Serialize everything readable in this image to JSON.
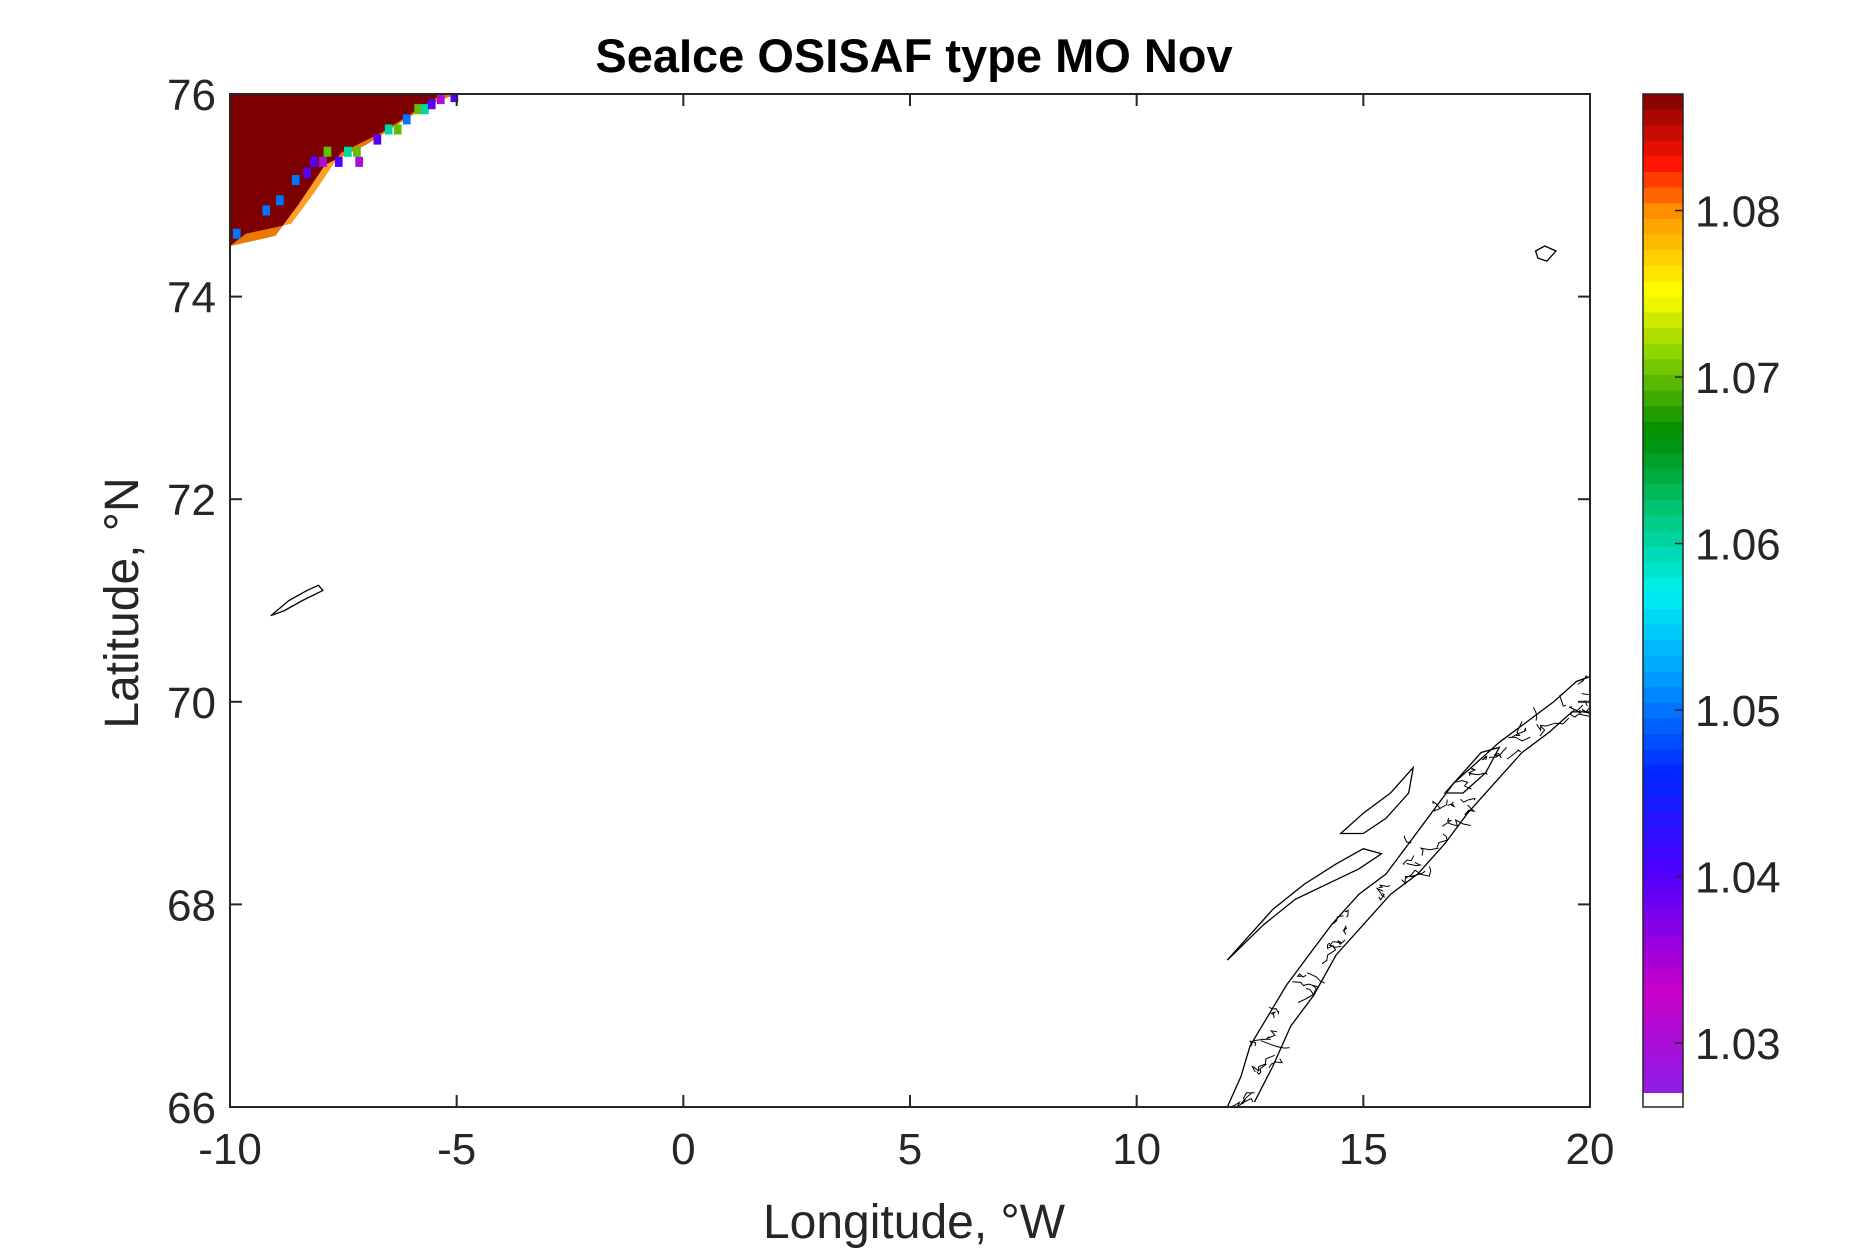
{
  "chart_data": {
    "type": "heatmap",
    "title": "SeaIce OSISAF type MO Nov",
    "xlabel": "Longitude, °W",
    "ylabel": "Latitude, °N",
    "xlim": [
      -10,
      20
    ],
    "ylim": [
      66,
      76
    ],
    "xticks": [
      -10,
      -5,
      0,
      5,
      10,
      15,
      20
    ],
    "xtick_labels": [
      "-10",
      "-5",
      "0",
      "5",
      "10",
      "15",
      "20"
    ],
    "yticks": [
      66,
      68,
      70,
      72,
      74,
      76
    ],
    "ytick_labels": [
      "66",
      "68",
      "70",
      "72",
      "74",
      "76"
    ],
    "colorbar": {
      "colormap": "jet-like",
      "range": [
        1.027,
        1.087
      ],
      "ticks": [
        1.03,
        1.04,
        1.05,
        1.06,
        1.07,
        1.08
      ],
      "tick_labels": [
        "1.03",
        "1.04",
        "1.05",
        "1.06",
        "1.07",
        "1.08"
      ],
      "no_data_color": "#ffffff"
    },
    "ice_region": {
      "description_value": "mostly ~1.087 (dark red) with 1.08 edge cells",
      "core_value": 1.087,
      "edge_value": 1.08,
      "boundary": [
        {
          "lon": -10.0,
          "lat": 74.5
        },
        {
          "lon": -9.0,
          "lat": 74.6
        },
        {
          "lon": -8.5,
          "lat": 74.9
        },
        {
          "lon": -7.9,
          "lat": 75.3
        },
        {
          "lon": -7.0,
          "lat": 75.5
        },
        {
          "lon": -6.3,
          "lat": 75.7
        },
        {
          "lon": -5.6,
          "lat": 75.9
        },
        {
          "lon": -5.0,
          "lat": 76.0
        }
      ],
      "edge_cells": [
        {
          "lon": -9.85,
          "lat": 74.62,
          "value": 1.05
        },
        {
          "lon": -9.2,
          "lat": 74.85,
          "value": 1.05
        },
        {
          "lon": -8.9,
          "lat": 74.95,
          "value": 1.05
        },
        {
          "lon": -8.55,
          "lat": 75.15,
          "value": 1.05
        },
        {
          "lon": -8.3,
          "lat": 75.22,
          "value": 1.04
        },
        {
          "lon": -8.15,
          "lat": 75.33,
          "value": 1.04
        },
        {
          "lon": -7.95,
          "lat": 75.33,
          "value": 1.03
        },
        {
          "lon": -7.85,
          "lat": 75.43,
          "value": 1.07
        },
        {
          "lon": -7.6,
          "lat": 75.33,
          "value": 1.04
        },
        {
          "lon": -7.4,
          "lat": 75.43,
          "value": 1.06
        },
        {
          "lon": -7.2,
          "lat": 75.43,
          "value": 1.07
        },
        {
          "lon": -7.15,
          "lat": 75.33,
          "value": 1.03
        },
        {
          "lon": -6.75,
          "lat": 75.55,
          "value": 1.04
        },
        {
          "lon": -6.5,
          "lat": 75.65,
          "value": 1.06
        },
        {
          "lon": -6.3,
          "lat": 75.65,
          "value": 1.07
        },
        {
          "lon": -6.1,
          "lat": 75.75,
          "value": 1.05
        },
        {
          "lon": -5.85,
          "lat": 75.85,
          "value": 1.07
        },
        {
          "lon": -5.7,
          "lat": 75.85,
          "value": 1.06
        },
        {
          "lon": -5.55,
          "lat": 75.9,
          "value": 1.04
        },
        {
          "lon": -5.35,
          "lat": 75.95,
          "value": 1.03
        },
        {
          "lon": -5.05,
          "lat": 75.97,
          "value": 1.04
        }
      ]
    },
    "coastlines": {
      "color": "#000000",
      "jan_mayen": [
        {
          "lon": -9.1,
          "lat": 70.85
        },
        {
          "lon": -8.7,
          "lat": 71.0
        },
        {
          "lon": -8.3,
          "lat": 71.1
        },
        {
          "lon": -8.05,
          "lat": 71.15
        },
        {
          "lon": -7.95,
          "lat": 71.1
        },
        {
          "lon": -8.4,
          "lat": 71.0
        },
        {
          "lon": -8.8,
          "lat": 70.9
        },
        {
          "lon": -9.1,
          "lat": 70.85
        }
      ],
      "bear_island": [
        {
          "lon": 18.8,
          "lat": 74.45
        },
        {
          "lon": 19.0,
          "lat": 74.5
        },
        {
          "lon": 19.25,
          "lat": 74.45
        },
        {
          "lon": 19.05,
          "lat": 74.35
        },
        {
          "lon": 18.85,
          "lat": 74.38
        },
        {
          "lon": 18.8,
          "lat": 74.45
        }
      ],
      "norway_outer": [
        {
          "lon": 12.0,
          "lat": 66.0
        },
        {
          "lon": 12.3,
          "lat": 66.3
        },
        {
          "lon": 12.5,
          "lat": 66.6
        },
        {
          "lon": 12.9,
          "lat": 66.9
        },
        {
          "lon": 13.3,
          "lat": 67.2
        },
        {
          "lon": 13.8,
          "lat": 67.5
        },
        {
          "lon": 14.3,
          "lat": 67.8
        },
        {
          "lon": 14.9,
          "lat": 68.1
        },
        {
          "lon": 15.5,
          "lat": 68.3
        },
        {
          "lon": 16.0,
          "lat": 68.6
        },
        {
          "lon": 16.5,
          "lat": 68.9
        },
        {
          "lon": 17.0,
          "lat": 69.2
        },
        {
          "lon": 17.5,
          "lat": 69.4
        },
        {
          "lon": 18.0,
          "lat": 69.6
        },
        {
          "lon": 18.6,
          "lat": 69.8
        },
        {
          "lon": 19.2,
          "lat": 70.0
        },
        {
          "lon": 19.7,
          "lat": 70.2
        },
        {
          "lon": 20.0,
          "lat": 70.25
        }
      ],
      "norway_inner": [
        {
          "lon": 12.6,
          "lat": 66.05
        },
        {
          "lon": 13.0,
          "lat": 66.4
        },
        {
          "lon": 13.4,
          "lat": 66.8
        },
        {
          "lon": 13.9,
          "lat": 67.1
        },
        {
          "lon": 14.4,
          "lat": 67.5
        },
        {
          "lon": 15.0,
          "lat": 67.8
        },
        {
          "lon": 15.6,
          "lat": 68.1
        },
        {
          "lon": 16.2,
          "lat": 68.3
        },
        {
          "lon": 16.8,
          "lat": 68.6
        },
        {
          "lon": 17.3,
          "lat": 68.9
        },
        {
          "lon": 17.9,
          "lat": 69.2
        },
        {
          "lon": 18.5,
          "lat": 69.5
        },
        {
          "lon": 19.1,
          "lat": 69.7
        },
        {
          "lon": 19.6,
          "lat": 69.9
        },
        {
          "lon": 20.0,
          "lat": 69.9
        }
      ],
      "lofoten": [
        {
          "lon": 12.0,
          "lat": 67.45
        },
        {
          "lon": 12.8,
          "lat": 67.8
        },
        {
          "lon": 13.5,
          "lat": 68.05
        },
        {
          "lon": 14.2,
          "lat": 68.2
        },
        {
          "lon": 14.9,
          "lat": 68.35
        },
        {
          "lon": 15.4,
          "lat": 68.5
        },
        {
          "lon": 15.0,
          "lat": 68.55
        },
        {
          "lon": 14.4,
          "lat": 68.4
        },
        {
          "lon": 13.7,
          "lat": 68.2
        },
        {
          "lon": 13.0,
          "lat": 67.95
        },
        {
          "lon": 12.3,
          "lat": 67.6
        },
        {
          "lon": 12.0,
          "lat": 67.45
        }
      ],
      "vesteralen": [
        {
          "lon": 14.5,
          "lat": 68.7
        },
        {
          "lon": 15.0,
          "lat": 68.9
        },
        {
          "lon": 15.6,
          "lat": 69.1
        },
        {
          "lon": 16.1,
          "lat": 69.35
        },
        {
          "lon": 16.0,
          "lat": 69.1
        },
        {
          "lon": 15.5,
          "lat": 68.85
        },
        {
          "lon": 15.0,
          "lat": 68.7
        },
        {
          "lon": 14.5,
          "lat": 68.7
        }
      ],
      "senja": [
        {
          "lon": 16.8,
          "lat": 69.1
        },
        {
          "lon": 17.2,
          "lat": 69.3
        },
        {
          "lon": 17.6,
          "lat": 69.5
        },
        {
          "lon": 18.0,
          "lat": 69.55
        },
        {
          "lon": 17.7,
          "lat": 69.3
        },
        {
          "lon": 17.2,
          "lat": 69.1
        },
        {
          "lon": 16.8,
          "lat": 69.1
        }
      ]
    }
  }
}
